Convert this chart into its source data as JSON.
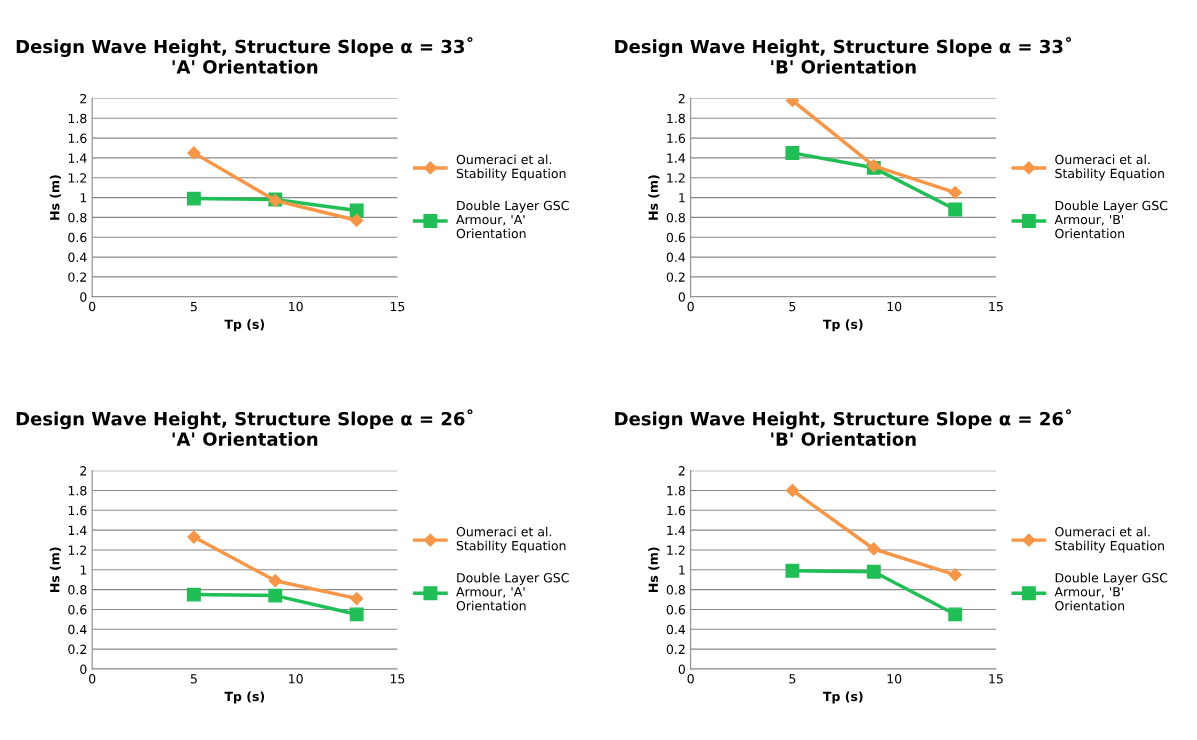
{
  "chart_data": [
    {
      "type": "line",
      "title": "Design Wave Height, Structure Slope α = 33˚\n'A' Orientation",
      "xlabel": "Tp (s)",
      "ylabel": "Hs (m)",
      "xlim": [
        0,
        15
      ],
      "xticks": [
        0,
        5,
        10,
        15
      ],
      "ylim": [
        0,
        2
      ],
      "yticks": [
        0,
        0.2,
        0.4,
        0.6,
        0.8,
        1,
        1.2,
        1.4,
        1.6,
        1.8,
        2
      ],
      "grid": "y",
      "legend": "right",
      "x": [
        5,
        9,
        13
      ],
      "series": [
        {
          "name": "Oumeraci et al.\nStability Equation",
          "color": "#f79646",
          "marker": "diamond",
          "values": [
            1.45,
            0.97,
            0.77
          ]
        },
        {
          "name": "Double Layer GSC\nArmour, 'A'\nOrientation",
          "color": "#1fbf55",
          "marker": "square",
          "values": [
            0.99,
            0.98,
            0.87
          ]
        }
      ]
    },
    {
      "type": "line",
      "title": "Design Wave Height, Structure Slope α = 33˚\n'B' Orientation",
      "xlabel": "Tp (s)",
      "ylabel": "Hs (m)",
      "xlim": [
        0,
        15
      ],
      "xticks": [
        0,
        5,
        10,
        15
      ],
      "ylim": [
        0,
        2
      ],
      "yticks": [
        0,
        0.2,
        0.4,
        0.6,
        0.8,
        1,
        1.2,
        1.4,
        1.6,
        1.8,
        2
      ],
      "grid": "y",
      "legend": "right",
      "x": [
        5,
        9,
        13
      ],
      "series": [
        {
          "name": "Oumeraci et al.\nStability Equation",
          "color": "#f79646",
          "marker": "diamond",
          "values": [
            1.98,
            1.32,
            1.05
          ]
        },
        {
          "name": "Double Layer GSC\nArmour, 'B'\nOrientation",
          "color": "#1fbf55",
          "marker": "square",
          "values": [
            1.45,
            1.3,
            0.88
          ]
        }
      ]
    },
    {
      "type": "line",
      "title": "Design Wave Height, Structure Slope α = 26˚\n'A' Orientation",
      "xlabel": "Tp (s)",
      "ylabel": "Hs (m)",
      "xlim": [
        0,
        15
      ],
      "xticks": [
        0,
        5,
        10,
        15
      ],
      "ylim": [
        0,
        2
      ],
      "yticks": [
        0,
        0.2,
        0.4,
        0.6,
        0.8,
        1,
        1.2,
        1.4,
        1.6,
        1.8,
        2
      ],
      "grid": "y",
      "legend": "right",
      "x": [
        5,
        9,
        13
      ],
      "series": [
        {
          "name": "Oumeraci et al.\nStability Equation",
          "color": "#f79646",
          "marker": "diamond",
          "values": [
            1.33,
            0.89,
            0.71
          ]
        },
        {
          "name": "Double Layer GSC\nArmour, 'A'\nOrientation",
          "color": "#1fbf55",
          "marker": "square",
          "values": [
            0.75,
            0.74,
            0.55
          ]
        }
      ]
    },
    {
      "type": "line",
      "title": "Design Wave Height, Structure Slope α = 26˚\n'B' Orientation",
      "xlabel": "Tp (s)",
      "ylabel": "Hs (m)",
      "xlim": [
        0,
        15
      ],
      "xticks": [
        0,
        5,
        10,
        15
      ],
      "ylim": [
        0,
        2
      ],
      "yticks": [
        0,
        0.2,
        0.4,
        0.6,
        0.8,
        1,
        1.2,
        1.4,
        1.6,
        1.8,
        2
      ],
      "grid": "y",
      "legend": "right",
      "x": [
        5,
        9,
        13
      ],
      "series": [
        {
          "name": "Oumeraci et al.\nStability Equation",
          "color": "#f79646",
          "marker": "diamond",
          "values": [
            1.8,
            1.21,
            0.95
          ]
        },
        {
          "name": "Double Layer GSC\nArmour, 'B'\nOrientation",
          "color": "#1fbf55",
          "marker": "square",
          "values": [
            0.99,
            0.98,
            0.55
          ]
        }
      ]
    }
  ]
}
